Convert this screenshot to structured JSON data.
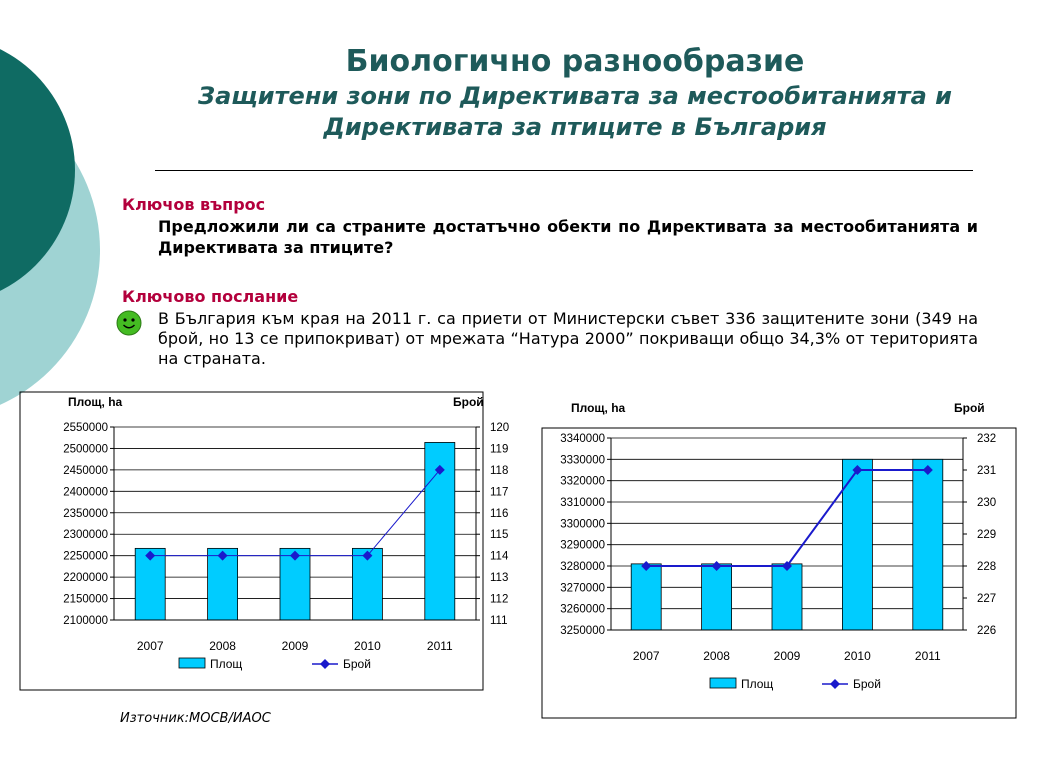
{
  "title": {
    "line1": "Биологично разнообразие",
    "line2": "Защитени зони по Директивата за местообитанията и",
    "line3": "Директивата за птиците  в България"
  },
  "question": {
    "label": "Ключов въпрос",
    "text": "Предложили ли са страните достатъчно обекти по Директивата за местообитанията и Директивата за птиците?"
  },
  "message": {
    "label": "Ключово послание",
    "text": "В България към края на 2011 г. са приети от Министерски съвет 336 защитените зони (349 на брой, но 13 се припокриват) от мрежата “Натура 2000” покриващи общо 34,3% от територията на страната."
  },
  "source": "Източник:МОСВ/ИАОС",
  "colors": {
    "title": "#1e5a5a",
    "label": "#b3003c",
    "bar": "#00ccff",
    "line": "#1a1acc",
    "deco_dark": "#0f6b63",
    "deco_light": "#9fd3d3",
    "smiley": "#44bb22"
  },
  "icons": {
    "status": "smiley-face-icon"
  },
  "chart_data": [
    {
      "type": "bar",
      "categories": [
        "2007",
        "2008",
        "2009",
        "2010",
        "2011"
      ],
      "series": [
        {
          "name": "Площ",
          "type": "bar",
          "axis": "left",
          "values": [
            2267000,
            2267000,
            2267000,
            2267000,
            2514000
          ]
        },
        {
          "name": "Брой",
          "type": "line",
          "axis": "right",
          "values": [
            114,
            114,
            114,
            114,
            118
          ]
        }
      ],
      "ylabel": "Площ, ha",
      "y2label": "Брой",
      "ylim": [
        2100000,
        2550000
      ],
      "y2lim": [
        111,
        120
      ],
      "yticks": [
        "2100000",
        "2150000",
        "2200000",
        "2250000",
        "2300000",
        "2350000",
        "2400000",
        "2450000",
        "2500000",
        "2550000"
      ],
      "y2ticks": [
        "111",
        "112",
        "113",
        "114",
        "115",
        "116",
        "117",
        "118",
        "119",
        "120"
      ],
      "grid": true,
      "legend": "bottom"
    },
    {
      "type": "bar",
      "categories": [
        "2007",
        "2008",
        "2009",
        "2010",
        "2011"
      ],
      "series": [
        {
          "name": "Площ",
          "type": "bar",
          "axis": "left",
          "values": [
            3281000,
            3281000,
            3281000,
            3330000,
            3330000
          ]
        },
        {
          "name": "Брой",
          "type": "line",
          "axis": "right",
          "values": [
            228,
            228,
            228,
            231,
            231
          ]
        }
      ],
      "ylabel": "Площ, ha",
      "y2label": "Брой",
      "ylim": [
        3250000,
        3340000
      ],
      "y2lim": [
        226,
        232
      ],
      "yticks": [
        "3250000",
        "3260000",
        "3270000",
        "3280000",
        "3290000",
        "3300000",
        "3310000",
        "3320000",
        "3330000",
        "3340000"
      ],
      "y2ticks": [
        "226",
        "227",
        "228",
        "229",
        "230",
        "231",
        "232"
      ],
      "grid": true,
      "legend": "bottom"
    }
  ]
}
